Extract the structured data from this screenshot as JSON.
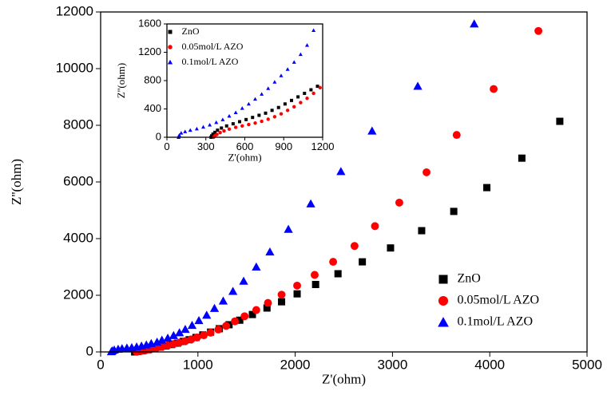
{
  "chart_data": [
    {
      "type": "scatter",
      "xlabel": "Z'(ohm)",
      "ylabel": "Z''(ohm)",
      "xlim": [
        0,
        5000
      ],
      "ylim": [
        0,
        12000
      ],
      "xticks": [
        0,
        1000,
        2000,
        3000,
        4000,
        5000
      ],
      "yticks": [
        0,
        2000,
        4000,
        6000,
        8000,
        10000,
        12000
      ],
      "legend": "lower right",
      "series": [
        {
          "name": "ZnO",
          "color": "#000000",
          "marker": "square",
          "x": [
            350,
            380,
            430,
            490,
            550,
            610,
            670,
            730,
            790,
            850,
            910,
            980,
            1050,
            1130,
            1220,
            1320,
            1430,
            1560,
            1710,
            1860,
            2020,
            2210,
            2440,
            2690,
            2980,
            3300,
            3630,
            3970,
            4330,
            4720
          ],
          "values": [
            0,
            15,
            40,
            80,
            120,
            170,
            210,
            260,
            310,
            370,
            430,
            510,
            600,
            700,
            820,
            960,
            1120,
            1320,
            1550,
            1770,
            2050,
            2380,
            2760,
            3180,
            3670,
            4280,
            4960,
            5800,
            6840,
            8140
          ]
        },
        {
          "name": "0.05mol/L AZO",
          "color": "#ff0000",
          "marker": "circle",
          "x": [
            370,
            410,
            460,
            510,
            570,
            630,
            690,
            750,
            810,
            870,
            930,
            990,
            1060,
            1130,
            1210,
            1290,
            1380,
            1480,
            1600,
            1720,
            1860,
            2020,
            2200,
            2390,
            2610,
            2820,
            3070,
            3350,
            3660,
            4040,
            4500
          ],
          "values": [
            5,
            25,
            55,
            90,
            130,
            180,
            230,
            280,
            330,
            380,
            440,
            510,
            590,
            680,
            790,
            920,
            1080,
            1260,
            1480,
            1730,
            2020,
            2340,
            2720,
            3180,
            3740,
            4440,
            5270,
            6340,
            7660,
            9280,
            11330
          ]
        },
        {
          "name": "0.1mol/L AZO",
          "color": "#0000ff",
          "marker": "triangle",
          "x": [
            110,
            120,
            140,
            180,
            220,
            270,
            320,
            370,
            420,
            470,
            520,
            580,
            630,
            690,
            750,
            810,
            870,
            940,
            1010,
            1090,
            1170,
            1260,
            1360,
            1470,
            1600,
            1740,
            1930,
            2160,
            2470,
            2790,
            3260,
            3840
          ],
          "values": [
            10,
            40,
            70,
            100,
            120,
            140,
            155,
            180,
            210,
            250,
            300,
            350,
            420,
            490,
            580,
            680,
            800,
            940,
            1110,
            1300,
            1540,
            1800,
            2140,
            2500,
            3000,
            3530,
            4330,
            5230,
            6370,
            7800,
            9380,
            11580
          ]
        }
      ]
    },
    {
      "type": "scatter",
      "xlabel": "Z'(ohm)",
      "ylabel": "Z''(ohm)",
      "xlim": [
        0,
        1200
      ],
      "ylim": [
        0,
        1600
      ],
      "xticks": [
        0,
        300,
        600,
        900,
        1200
      ],
      "yticks": [
        0,
        400,
        800,
        1200,
        1600
      ],
      "legend": "upper left",
      "series": [
        {
          "name": "ZnO",
          "color": "#000000",
          "marker": "square",
          "x": [
            340,
            345,
            355,
            370,
            390,
            420,
            460,
            510,
            560,
            610,
            660,
            710,
            760,
            810,
            860,
            910,
            960,
            1010,
            1060,
            1110,
            1160
          ],
          "values": [
            0,
            20,
            45,
            70,
            100,
            130,
            160,
            190,
            220,
            250,
            280,
            310,
            340,
            380,
            420,
            470,
            520,
            570,
            620,
            670,
            720
          ]
        },
        {
          "name": "0.05mol/L AZO",
          "color": "#ff0000",
          "marker": "circle",
          "x": [
            360,
            370,
            385,
            410,
            440,
            480,
            530,
            580,
            630,
            680,
            730,
            780,
            830,
            880,
            930,
            980,
            1030,
            1080,
            1130,
            1180
          ],
          "values": [
            0,
            20,
            40,
            65,
            90,
            115,
            140,
            160,
            180,
            200,
            225,
            255,
            290,
            330,
            380,
            430,
            490,
            550,
            620,
            700
          ]
        },
        {
          "name": "0.1mol/L AZO",
          "color": "#0000ff",
          "marker": "triangle",
          "x": [
            90,
            95,
            110,
            140,
            180,
            230,
            280,
            330,
            380,
            430,
            480,
            530,
            580,
            630,
            680,
            730,
            780,
            830,
            880,
            930,
            980,
            1030,
            1080,
            1130
          ],
          "values": [
            0,
            30,
            60,
            80,
            100,
            120,
            145,
            175,
            210,
            250,
            300,
            350,
            410,
            470,
            540,
            610,
            690,
            780,
            870,
            960,
            1060,
            1170,
            1300,
            1510
          ]
        }
      ]
    }
  ]
}
